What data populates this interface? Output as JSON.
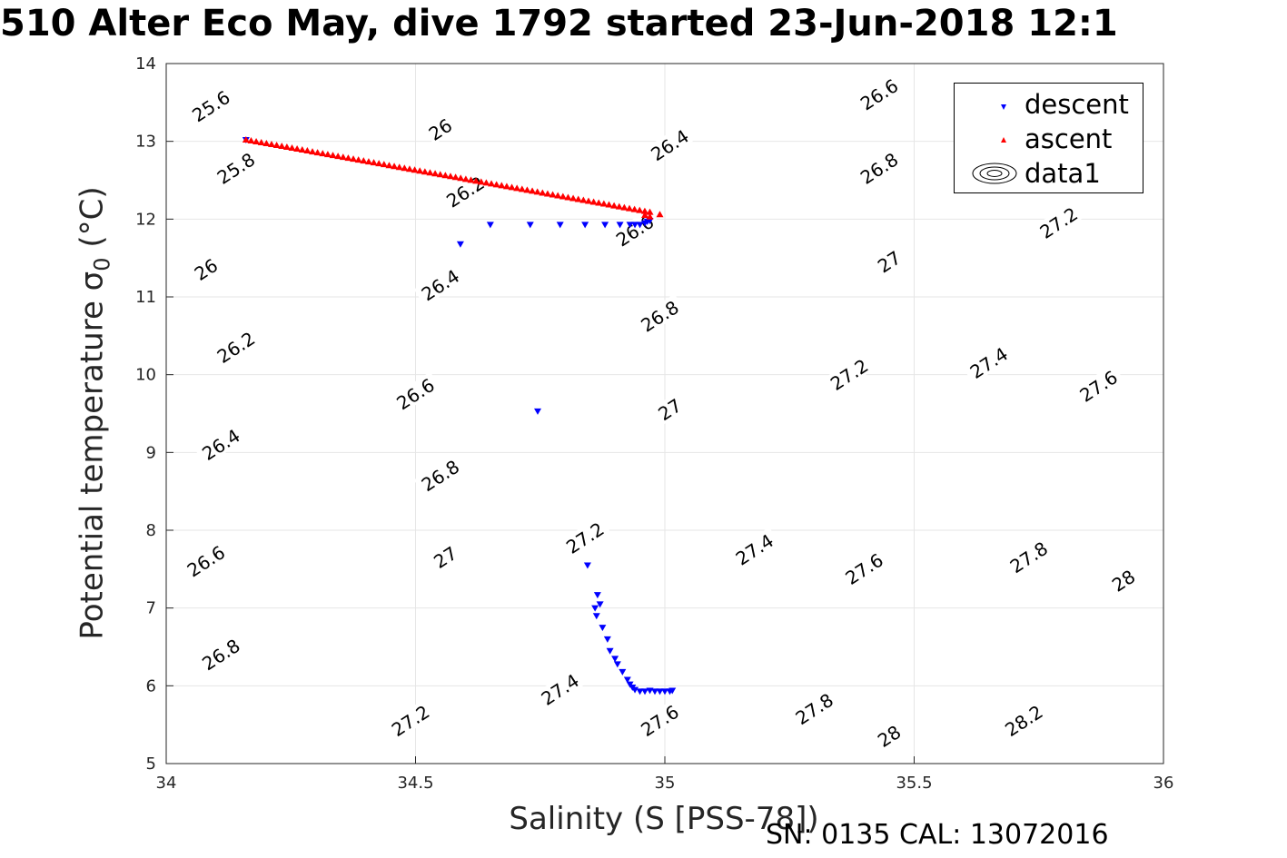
{
  "title": "510 Alter Eco May, dive 1792 started 23-Jun-2018 12:1",
  "footnote": "SN: 0135  CAL: 13072016",
  "chart_data": {
    "type": "scatter",
    "xlabel": "Salinity (S [PSS-78])",
    "ylabel_text": "Potential temperature ",
    "ylabel_symbol": "σ",
    "ylabel_subscript": "0",
    "ylabel_unit": " (°C)",
    "xlim": [
      34,
      36
    ],
    "ylim": [
      5,
      14
    ],
    "xticks": [
      "34",
      "34.5",
      "35",
      "35.5",
      "36"
    ],
    "yticks": [
      "5",
      "6",
      "7",
      "8",
      "9",
      "10",
      "11",
      "12",
      "13",
      "14"
    ],
    "grid": true,
    "legend_position": "top-right",
    "legend": [
      "descent",
      "ascent",
      "data1"
    ],
    "contour_levels": [
      25.6,
      25.8,
      26,
      26.2,
      26.4,
      26.6,
      26.8,
      27,
      27.2,
      27.4,
      27.6,
      27.8,
      28,
      28.2
    ],
    "contour_labels": [
      {
        "text": "25.6",
        "x": 34.09,
        "y": 13.45
      },
      {
        "text": "25.8",
        "x": 34.14,
        "y": 12.65
      },
      {
        "text": "26",
        "x": 34.08,
        "y": 11.35
      },
      {
        "text": "26.2",
        "x": 34.14,
        "y": 10.35
      },
      {
        "text": "26.4",
        "x": 34.11,
        "y": 9.1
      },
      {
        "text": "26.6",
        "x": 34.08,
        "y": 7.6
      },
      {
        "text": "26.8",
        "x": 34.11,
        "y": 6.4
      },
      {
        "text": "26",
        "x": 34.55,
        "y": 13.15
      },
      {
        "text": "26.2",
        "x": 34.6,
        "y": 12.35
      },
      {
        "text": "26.4",
        "x": 34.55,
        "y": 11.15
      },
      {
        "text": "26.6",
        "x": 34.5,
        "y": 9.75
      },
      {
        "text": "26.8",
        "x": 34.55,
        "y": 8.7
      },
      {
        "text": "27",
        "x": 34.56,
        "y": 7.65
      },
      {
        "text": "27.2",
        "x": 34.49,
        "y": 5.55
      },
      {
        "text": "26.4",
        "x": 35.01,
        "y": 12.95
      },
      {
        "text": "26.6",
        "x": 34.94,
        "y": 11.85
      },
      {
        "text": "26.8",
        "x": 34.99,
        "y": 10.75
      },
      {
        "text": "27",
        "x": 35.01,
        "y": 9.55
      },
      {
        "text": "27.2",
        "x": 34.84,
        "y": 7.9
      },
      {
        "text": "27.4",
        "x": 34.79,
        "y": 5.95
      },
      {
        "text": "27.6",
        "x": 34.99,
        "y": 5.55
      },
      {
        "text": "26.6",
        "x": 35.43,
        "y": 13.6
      },
      {
        "text": "26.8",
        "x": 35.43,
        "y": 12.65
      },
      {
        "text": "27",
        "x": 35.45,
        "y": 11.45
      },
      {
        "text": "27.2",
        "x": 35.37,
        "y": 10.0
      },
      {
        "text": "27.4",
        "x": 35.18,
        "y": 7.75
      },
      {
        "text": "27.8",
        "x": 35.3,
        "y": 5.7
      },
      {
        "text": "27.2",
        "x": 35.79,
        "y": 11.95
      },
      {
        "text": "27.4",
        "x": 35.65,
        "y": 10.15
      },
      {
        "text": "27.6",
        "x": 35.4,
        "y": 7.5
      },
      {
        "text": "28",
        "x": 35.45,
        "y": 5.35
      },
      {
        "text": "27.6",
        "x": 35.87,
        "y": 9.85
      },
      {
        "text": "27.8",
        "x": 35.73,
        "y": 7.65
      },
      {
        "text": "28.2",
        "x": 35.72,
        "y": 5.55
      },
      {
        "text": "28",
        "x": 35.92,
        "y": 7.35
      }
    ],
    "series": [
      {
        "name": "descent",
        "color": "#0000ff",
        "marker": "triangle-down",
        "x": [
          34.16,
          34.59,
          34.65,
          34.73,
          34.79,
          34.84,
          34.88,
          34.91,
          34.93,
          34.94,
          34.95,
          34.96,
          34.965,
          34.97,
          34.745,
          34.845,
          34.86,
          34.865,
          34.87,
          34.863,
          34.875,
          34.885,
          34.89,
          34.9,
          34.905,
          34.915,
          34.925,
          34.93,
          34.935,
          34.94,
          34.95,
          34.96,
          34.97,
          34.98,
          34.99,
          35.0,
          35.01,
          35.015
        ],
        "y": [
          13.02,
          11.68,
          11.93,
          11.93,
          11.93,
          11.93,
          11.93,
          11.93,
          11.93,
          11.93,
          11.93,
          11.95,
          11.97,
          11.98,
          9.53,
          7.55,
          7.0,
          7.17,
          7.05,
          6.9,
          6.75,
          6.6,
          6.45,
          6.35,
          6.28,
          6.18,
          6.08,
          6.02,
          5.98,
          5.95,
          5.93,
          5.93,
          5.94,
          5.93,
          5.93,
          5.93,
          5.93,
          5.94
        ]
      },
      {
        "name": "ascent",
        "color": "#ff0000",
        "marker": "triangle-up",
        "x_start": 34.16,
        "y_start": 13.02,
        "x_end": 34.97,
        "y_end": 12.09,
        "count": 80,
        "extra_x": [
          34.96,
          34.97,
          34.99
        ],
        "extra_y": [
          12.05,
          12.03,
          12.06
        ]
      }
    ]
  }
}
